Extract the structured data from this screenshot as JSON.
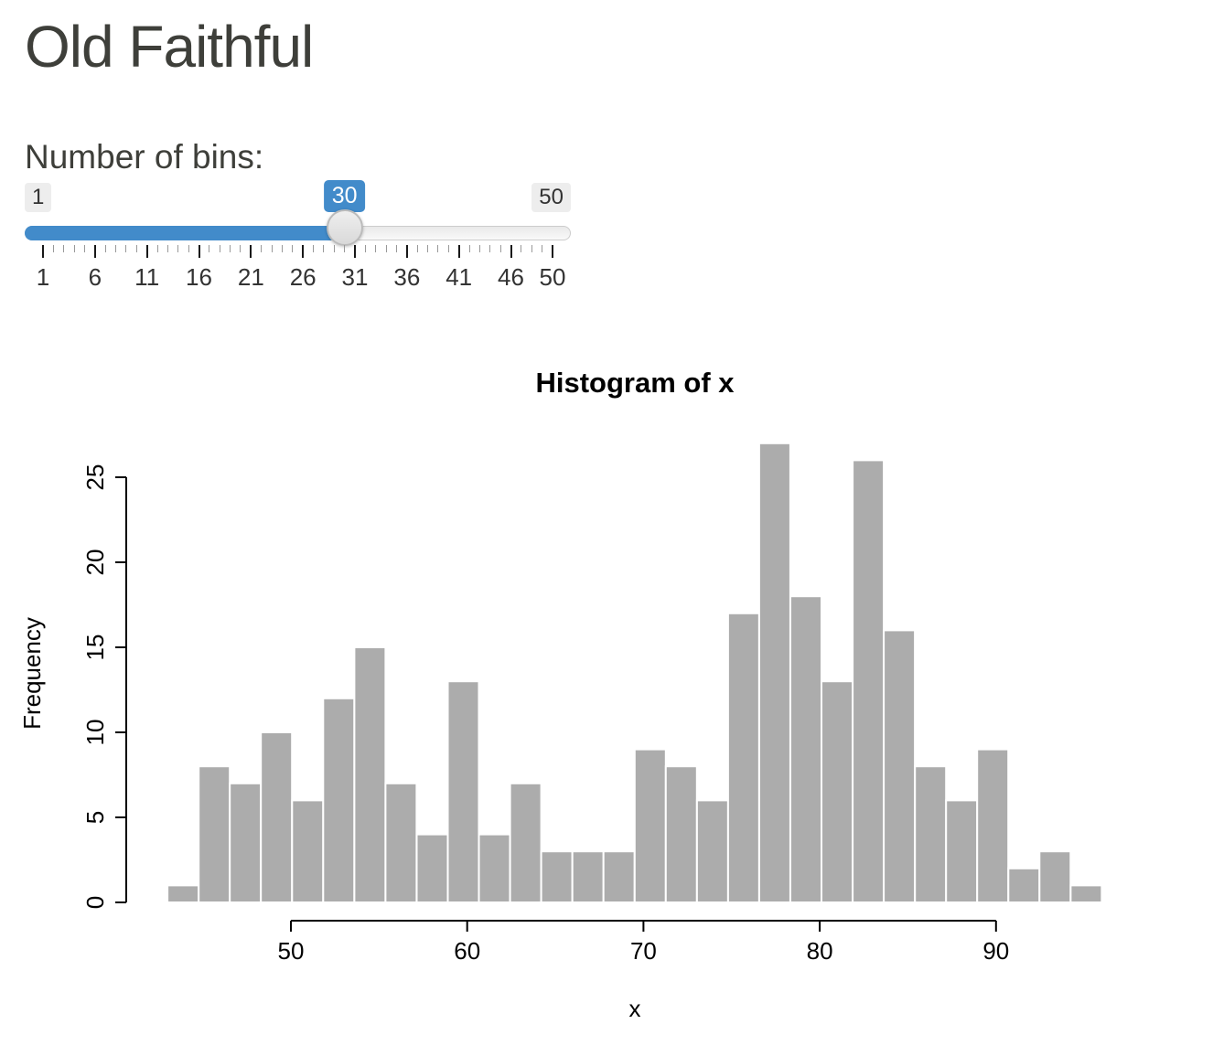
{
  "page": {
    "title": "Old Faithful"
  },
  "slider": {
    "label": "Number of bins:",
    "min": 1,
    "max": 50,
    "value": 30,
    "min_label": "1",
    "max_label": "50",
    "value_label": "30",
    "accent_color": "#428bca",
    "major_tick_values": [
      1,
      6,
      11,
      16,
      21,
      26,
      31,
      36,
      41,
      46,
      50
    ]
  },
  "chart_data": {
    "type": "bar",
    "title": "Histogram of x",
    "xlabel": "x",
    "ylabel": "Frequency",
    "bin_start": 43,
    "bin_width": 1.7666667,
    "counts": [
      1,
      8,
      7,
      10,
      6,
      12,
      15,
      7,
      4,
      13,
      4,
      7,
      3,
      3,
      3,
      9,
      8,
      6,
      17,
      27,
      18,
      13,
      26,
      16,
      8,
      6,
      9,
      2,
      3,
      1
    ],
    "x_ticks": [
      50,
      60,
      70,
      80,
      90
    ],
    "y_ticks": [
      0,
      5,
      10,
      15,
      20,
      25
    ],
    "xlim": [
      43,
      96
    ],
    "ylim": [
      0,
      28
    ],
    "grid": false,
    "legend": "none",
    "bar_fill": "#ACACAC",
    "bar_border": "#FFFFFF",
    "text_color": "#000000"
  }
}
